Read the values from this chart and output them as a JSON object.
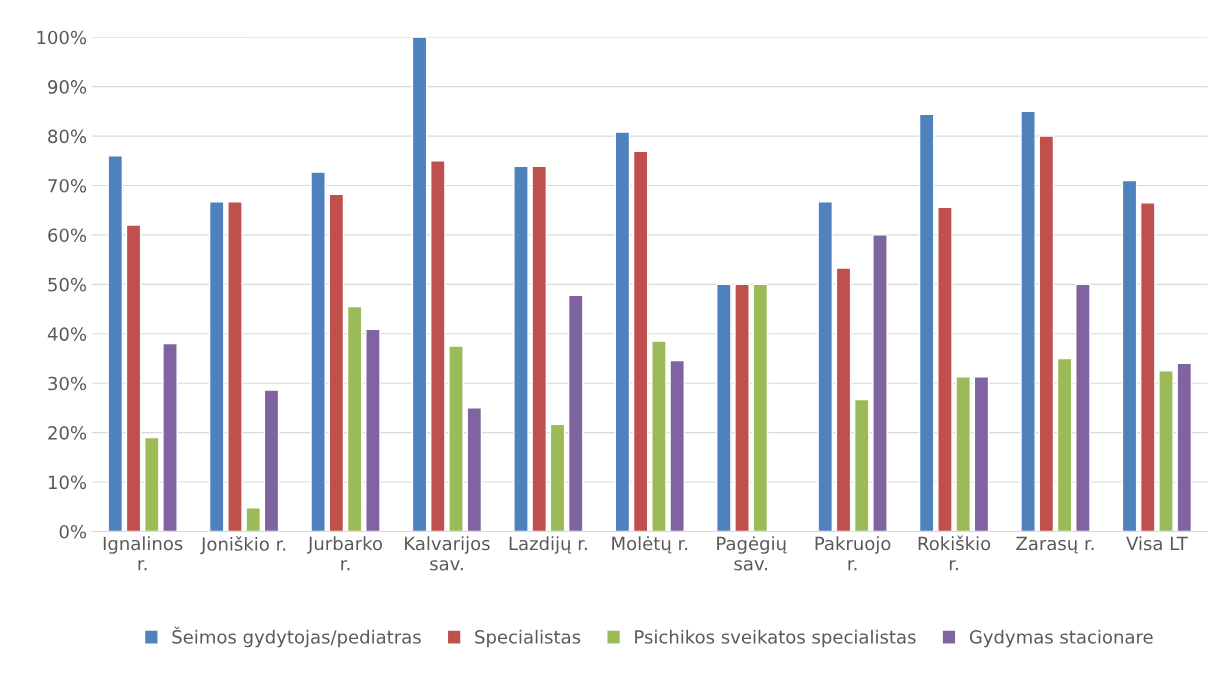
{
  "chart_data": {
    "type": "bar",
    "categories": [
      "Ignalinos\nr.",
      "Joniškio r.",
      "Jurbarko\nr.",
      "Kalvarijos\nsav.",
      "Lazdijų r.",
      "Molėtų r.",
      "Pagėgių\nsav.",
      "Pakruojo\nr.",
      "Rokiškio\nr.",
      "Zarasų r.",
      "Visa LT"
    ],
    "series": [
      {
        "name": "Šeimos gydytojas/pediatras",
        "color": "#4f81bd",
        "values": [
          76,
          66.7,
          72.7,
          100,
          73.9,
          80.8,
          50,
          66.7,
          84.4,
          85,
          71
        ]
      },
      {
        "name": "Specialistas",
        "color": "#c0504d",
        "values": [
          62,
          66.7,
          68.2,
          75,
          73.9,
          76.9,
          50,
          53.3,
          65.6,
          80,
          66.5
        ]
      },
      {
        "name": "Psichikos sveikatos specialistas",
        "color": "#9bbb59",
        "values": [
          19,
          4.8,
          45.5,
          37.5,
          21.7,
          38.5,
          50,
          26.7,
          31.3,
          35,
          32.5
        ]
      },
      {
        "name": "Gydymas stacionare",
        "color": "#8064a2",
        "values": [
          38,
          28.6,
          40.9,
          25,
          47.8,
          34.6,
          null,
          60,
          31.3,
          50,
          34
        ]
      }
    ],
    "ylim": [
      0,
      100
    ],
    "yticks": [
      {
        "value": 0,
        "label": "0%"
      },
      {
        "value": 10,
        "label": "10%"
      },
      {
        "value": 20,
        "label": "20%"
      },
      {
        "value": 30,
        "label": "30%"
      },
      {
        "value": 40,
        "label": "40%"
      },
      {
        "value": 50,
        "label": "50%"
      },
      {
        "value": 60,
        "label": "60%"
      },
      {
        "value": 70,
        "label": "70%"
      },
      {
        "value": 80,
        "label": "80%"
      },
      {
        "value": 90,
        "label": "90%"
      },
      {
        "value": 100,
        "label": "100%"
      }
    ],
    "grid": "y",
    "legend": "bottom"
  }
}
